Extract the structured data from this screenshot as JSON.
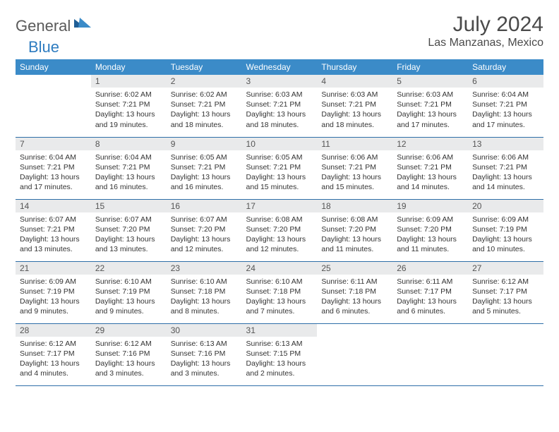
{
  "logo": {
    "text1": "General",
    "text2": "Blue"
  },
  "title": "July 2024",
  "location": "Las Manzanas, Mexico",
  "colors": {
    "header_bg": "#3b8bc8",
    "header_text": "#ffffff",
    "daynum_bg": "#e9eaeb",
    "border": "#2e6ea8",
    "logo_gray": "#5a5a5a",
    "logo_blue": "#2e7cc0"
  },
  "daynames": [
    "Sunday",
    "Monday",
    "Tuesday",
    "Wednesday",
    "Thursday",
    "Friday",
    "Saturday"
  ],
  "weeks": [
    [
      null,
      {
        "n": "1",
        "sr": "Sunrise: 6:02 AM",
        "ss": "Sunset: 7:21 PM",
        "d1": "Daylight: 13 hours",
        "d2": "and 19 minutes."
      },
      {
        "n": "2",
        "sr": "Sunrise: 6:02 AM",
        "ss": "Sunset: 7:21 PM",
        "d1": "Daylight: 13 hours",
        "d2": "and 18 minutes."
      },
      {
        "n": "3",
        "sr": "Sunrise: 6:03 AM",
        "ss": "Sunset: 7:21 PM",
        "d1": "Daylight: 13 hours",
        "d2": "and 18 minutes."
      },
      {
        "n": "4",
        "sr": "Sunrise: 6:03 AM",
        "ss": "Sunset: 7:21 PM",
        "d1": "Daylight: 13 hours",
        "d2": "and 18 minutes."
      },
      {
        "n": "5",
        "sr": "Sunrise: 6:03 AM",
        "ss": "Sunset: 7:21 PM",
        "d1": "Daylight: 13 hours",
        "d2": "and 17 minutes."
      },
      {
        "n": "6",
        "sr": "Sunrise: 6:04 AM",
        "ss": "Sunset: 7:21 PM",
        "d1": "Daylight: 13 hours",
        "d2": "and 17 minutes."
      }
    ],
    [
      {
        "n": "7",
        "sr": "Sunrise: 6:04 AM",
        "ss": "Sunset: 7:21 PM",
        "d1": "Daylight: 13 hours",
        "d2": "and 17 minutes."
      },
      {
        "n": "8",
        "sr": "Sunrise: 6:04 AM",
        "ss": "Sunset: 7:21 PM",
        "d1": "Daylight: 13 hours",
        "d2": "and 16 minutes."
      },
      {
        "n": "9",
        "sr": "Sunrise: 6:05 AM",
        "ss": "Sunset: 7:21 PM",
        "d1": "Daylight: 13 hours",
        "d2": "and 16 minutes."
      },
      {
        "n": "10",
        "sr": "Sunrise: 6:05 AM",
        "ss": "Sunset: 7:21 PM",
        "d1": "Daylight: 13 hours",
        "d2": "and 15 minutes."
      },
      {
        "n": "11",
        "sr": "Sunrise: 6:06 AM",
        "ss": "Sunset: 7:21 PM",
        "d1": "Daylight: 13 hours",
        "d2": "and 15 minutes."
      },
      {
        "n": "12",
        "sr": "Sunrise: 6:06 AM",
        "ss": "Sunset: 7:21 PM",
        "d1": "Daylight: 13 hours",
        "d2": "and 14 minutes."
      },
      {
        "n": "13",
        "sr": "Sunrise: 6:06 AM",
        "ss": "Sunset: 7:21 PM",
        "d1": "Daylight: 13 hours",
        "d2": "and 14 minutes."
      }
    ],
    [
      {
        "n": "14",
        "sr": "Sunrise: 6:07 AM",
        "ss": "Sunset: 7:21 PM",
        "d1": "Daylight: 13 hours",
        "d2": "and 13 minutes."
      },
      {
        "n": "15",
        "sr": "Sunrise: 6:07 AM",
        "ss": "Sunset: 7:20 PM",
        "d1": "Daylight: 13 hours",
        "d2": "and 13 minutes."
      },
      {
        "n": "16",
        "sr": "Sunrise: 6:07 AM",
        "ss": "Sunset: 7:20 PM",
        "d1": "Daylight: 13 hours",
        "d2": "and 12 minutes."
      },
      {
        "n": "17",
        "sr": "Sunrise: 6:08 AM",
        "ss": "Sunset: 7:20 PM",
        "d1": "Daylight: 13 hours",
        "d2": "and 12 minutes."
      },
      {
        "n": "18",
        "sr": "Sunrise: 6:08 AM",
        "ss": "Sunset: 7:20 PM",
        "d1": "Daylight: 13 hours",
        "d2": "and 11 minutes."
      },
      {
        "n": "19",
        "sr": "Sunrise: 6:09 AM",
        "ss": "Sunset: 7:20 PM",
        "d1": "Daylight: 13 hours",
        "d2": "and 11 minutes."
      },
      {
        "n": "20",
        "sr": "Sunrise: 6:09 AM",
        "ss": "Sunset: 7:19 PM",
        "d1": "Daylight: 13 hours",
        "d2": "and 10 minutes."
      }
    ],
    [
      {
        "n": "21",
        "sr": "Sunrise: 6:09 AM",
        "ss": "Sunset: 7:19 PM",
        "d1": "Daylight: 13 hours",
        "d2": "and 9 minutes."
      },
      {
        "n": "22",
        "sr": "Sunrise: 6:10 AM",
        "ss": "Sunset: 7:19 PM",
        "d1": "Daylight: 13 hours",
        "d2": "and 9 minutes."
      },
      {
        "n": "23",
        "sr": "Sunrise: 6:10 AM",
        "ss": "Sunset: 7:18 PM",
        "d1": "Daylight: 13 hours",
        "d2": "and 8 minutes."
      },
      {
        "n": "24",
        "sr": "Sunrise: 6:10 AM",
        "ss": "Sunset: 7:18 PM",
        "d1": "Daylight: 13 hours",
        "d2": "and 7 minutes."
      },
      {
        "n": "25",
        "sr": "Sunrise: 6:11 AM",
        "ss": "Sunset: 7:18 PM",
        "d1": "Daylight: 13 hours",
        "d2": "and 6 minutes."
      },
      {
        "n": "26",
        "sr": "Sunrise: 6:11 AM",
        "ss": "Sunset: 7:17 PM",
        "d1": "Daylight: 13 hours",
        "d2": "and 6 minutes."
      },
      {
        "n": "27",
        "sr": "Sunrise: 6:12 AM",
        "ss": "Sunset: 7:17 PM",
        "d1": "Daylight: 13 hours",
        "d2": "and 5 minutes."
      }
    ],
    [
      {
        "n": "28",
        "sr": "Sunrise: 6:12 AM",
        "ss": "Sunset: 7:17 PM",
        "d1": "Daylight: 13 hours",
        "d2": "and 4 minutes."
      },
      {
        "n": "29",
        "sr": "Sunrise: 6:12 AM",
        "ss": "Sunset: 7:16 PM",
        "d1": "Daylight: 13 hours",
        "d2": "and 3 minutes."
      },
      {
        "n": "30",
        "sr": "Sunrise: 6:13 AM",
        "ss": "Sunset: 7:16 PM",
        "d1": "Daylight: 13 hours",
        "d2": "and 3 minutes."
      },
      {
        "n": "31",
        "sr": "Sunrise: 6:13 AM",
        "ss": "Sunset: 7:15 PM",
        "d1": "Daylight: 13 hours",
        "d2": "and 2 minutes."
      },
      null,
      null,
      null
    ]
  ]
}
